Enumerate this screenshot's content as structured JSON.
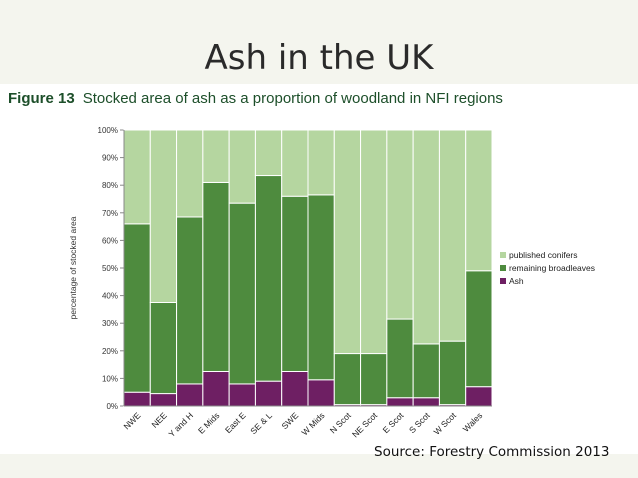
{
  "slide": {
    "title": "Ash in the UK",
    "source": "Source: Forestry Commission 2013"
  },
  "figure": {
    "number": "Figure 13",
    "caption": "Stocked area of ash as a proportion of woodland in NFI regions"
  },
  "colors": {
    "published_conifers": "#b5d6a0",
    "remaining_broadleaves": "#4e8b3e",
    "ash": "#6e1f63",
    "plot_bg": "#b5d6a0",
    "axis_text": "#333333"
  },
  "chart_data": {
    "type": "bar",
    "stacked": true,
    "title": "",
    "xlabel": "",
    "ylabel": "percentage of stocked area",
    "ylim": [
      0,
      100
    ],
    "yticks": [
      "0%",
      "10%",
      "20%",
      "30%",
      "40%",
      "50%",
      "60%",
      "70%",
      "80%",
      "90%",
      "100%"
    ],
    "grid": false,
    "legend_position": "right",
    "categories": [
      "NWE",
      "NEE",
      "Y and H",
      "E Mids",
      "East E",
      "SE & L",
      "SWE",
      "W Mids",
      "N Scot",
      "NE Scot",
      "E Scot",
      "S Scot",
      "W Scot",
      "Wales"
    ],
    "series": [
      {
        "name": "Ash",
        "values": [
          5,
          4.5,
          8,
          12.5,
          8,
          9,
          12.5,
          9.5,
          0.5,
          0.5,
          3,
          3,
          0.5,
          7
        ]
      },
      {
        "name": "remaining broadleaves",
        "values": [
          61,
          33,
          60.5,
          68.5,
          65.5,
          74.5,
          63.5,
          67,
          18.5,
          18.5,
          28.5,
          19.5,
          23,
          42
        ]
      },
      {
        "name": "published conifers",
        "values": [
          34,
          62.5,
          31.5,
          19,
          26.5,
          16.5,
          24,
          23.5,
          81,
          81,
          68.5,
          77.5,
          76.5,
          51
        ]
      }
    ],
    "legend": [
      "published conifers",
      "remaining broadleaves",
      "Ash"
    ]
  }
}
